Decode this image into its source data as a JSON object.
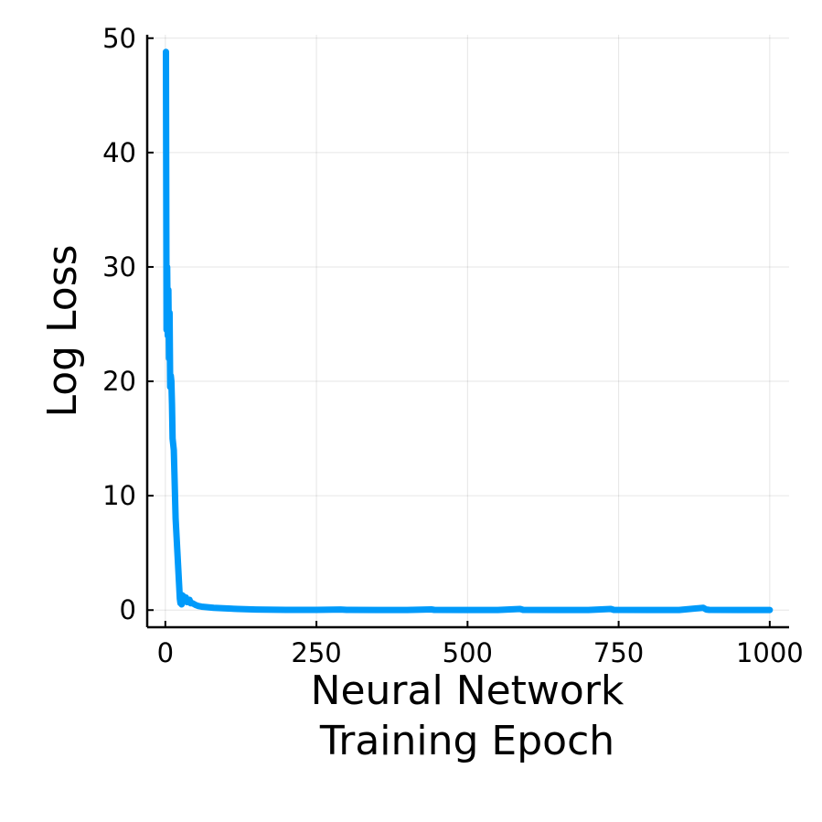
{
  "chart_data": {
    "type": "line",
    "title": "",
    "xlabel": [
      "Neural Network",
      "Training Epoch"
    ],
    "ylabel": "Log Loss",
    "xlim": [
      -30,
      1032
    ],
    "ylim": [
      -1.5,
      50.3
    ],
    "xticks": [
      0,
      250,
      500,
      750,
      1000
    ],
    "yticks": [
      0,
      10,
      20,
      30,
      40,
      50
    ],
    "xtick_labels": [
      "0",
      "250",
      "500",
      "750",
      "1000"
    ],
    "ytick_labels": [
      "0",
      "10",
      "20",
      "30",
      "40",
      "50"
    ],
    "grid": true,
    "legend": "none",
    "series": [
      {
        "color": "#009AFA",
        "x": [
          1,
          2,
          3,
          4,
          5,
          6,
          7,
          8,
          9,
          10,
          11,
          12,
          13,
          14,
          15,
          16,
          17,
          18,
          19,
          20,
          21,
          22,
          23,
          24,
          25,
          26,
          27,
          28,
          29,
          30,
          32,
          34,
          36,
          38,
          40,
          42,
          45,
          50,
          55,
          60,
          70,
          80,
          100,
          120,
          150,
          200,
          250,
          290,
          300,
          350,
          400,
          440,
          445,
          500,
          550,
          587,
          592,
          650,
          700,
          737,
          742,
          800,
          850,
          890,
          895,
          900,
          950,
          1000
        ],
        "y": [
          48.8,
          24.5,
          30.0,
          24.0,
          28.0,
          22.0,
          26.0,
          19.5,
          20.5,
          20.0,
          18.0,
          15.0,
          14.5,
          14.0,
          12.0,
          10.0,
          8.0,
          7.0,
          6.0,
          5.0,
          4.0,
          3.0,
          2.0,
          1.0,
          0.6,
          1.0,
          0.5,
          1.3,
          0.8,
          1.2,
          0.8,
          1.1,
          0.7,
          0.7,
          0.9,
          0.6,
          0.6,
          0.45,
          0.35,
          0.3,
          0.25,
          0.2,
          0.15,
          0.1,
          0.05,
          0.02,
          0.02,
          0.05,
          0.02,
          0.01,
          0.01,
          0.06,
          0.02,
          0.01,
          0.01,
          0.1,
          0.02,
          0.01,
          0.01,
          0.1,
          0.02,
          0.01,
          0.01,
          0.2,
          0.05,
          0.02,
          0.01,
          0.01
        ]
      }
    ]
  }
}
